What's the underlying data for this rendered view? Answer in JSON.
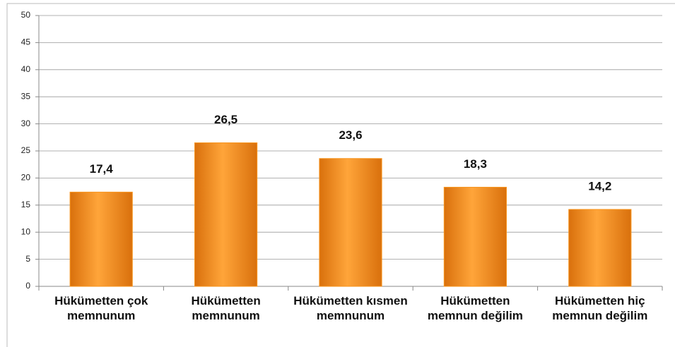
{
  "chart_data": {
    "type": "bar",
    "categories": [
      "Hükümetten çok memnunum",
      "Hükümetten memnunum",
      "Hükümetten kısmen memnunum",
      "Hükümetten memnun değilim",
      "Hükümetten hiç memnun değilim"
    ],
    "values": [
      17.4,
      26.5,
      23.6,
      18.3,
      14.2
    ],
    "value_labels": [
      "17,4",
      "26,5",
      "23,6",
      "18,3",
      "14,2"
    ],
    "color": "#f7941d",
    "ylim": [
      0,
      50
    ],
    "yticks": [
      0,
      5,
      10,
      15,
      20,
      25,
      30,
      35,
      40,
      45,
      50
    ],
    "grid": true
  }
}
